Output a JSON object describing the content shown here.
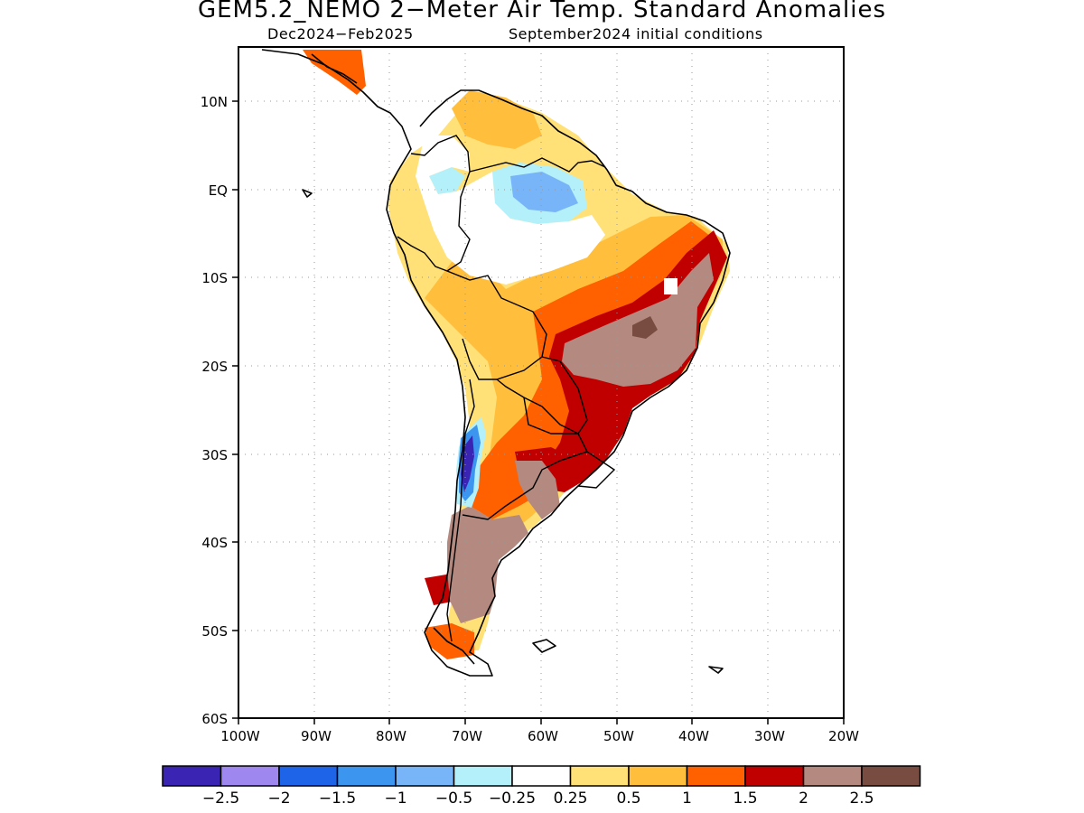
{
  "title": "GEM5.2_NEMO 2−Meter Air Temp. Standard Anomalies",
  "subtitle_left": "Dec2024−Feb2025",
  "subtitle_right": "September2024 initial conditions",
  "lat_labels": [
    "10N",
    "EQ",
    "10S",
    "20S",
    "30S",
    "40S",
    "50S",
    "60S"
  ],
  "lon_labels": [
    "100W",
    "90W",
    "80W",
    "70W",
    "60W",
    "50W",
    "40W",
    "30W",
    "20W"
  ],
  "colorbar": {
    "colors": [
      "#3a24b4",
      "#9e88f0",
      "#1e64e8",
      "#3c96f0",
      "#78b4f8",
      "#b4f0fa",
      "#ffffff",
      "#ffe178",
      "#ffbe3c",
      "#ff6000",
      "#c00000",
      "#b48a80",
      "#784c40"
    ],
    "labels": [
      "−2.5",
      "−2",
      "−1.5",
      "−1",
      "−0.5",
      "−0.25",
      "0.25",
      "0.5",
      "1",
      "1.5",
      "2",
      "2.5"
    ]
  }
}
